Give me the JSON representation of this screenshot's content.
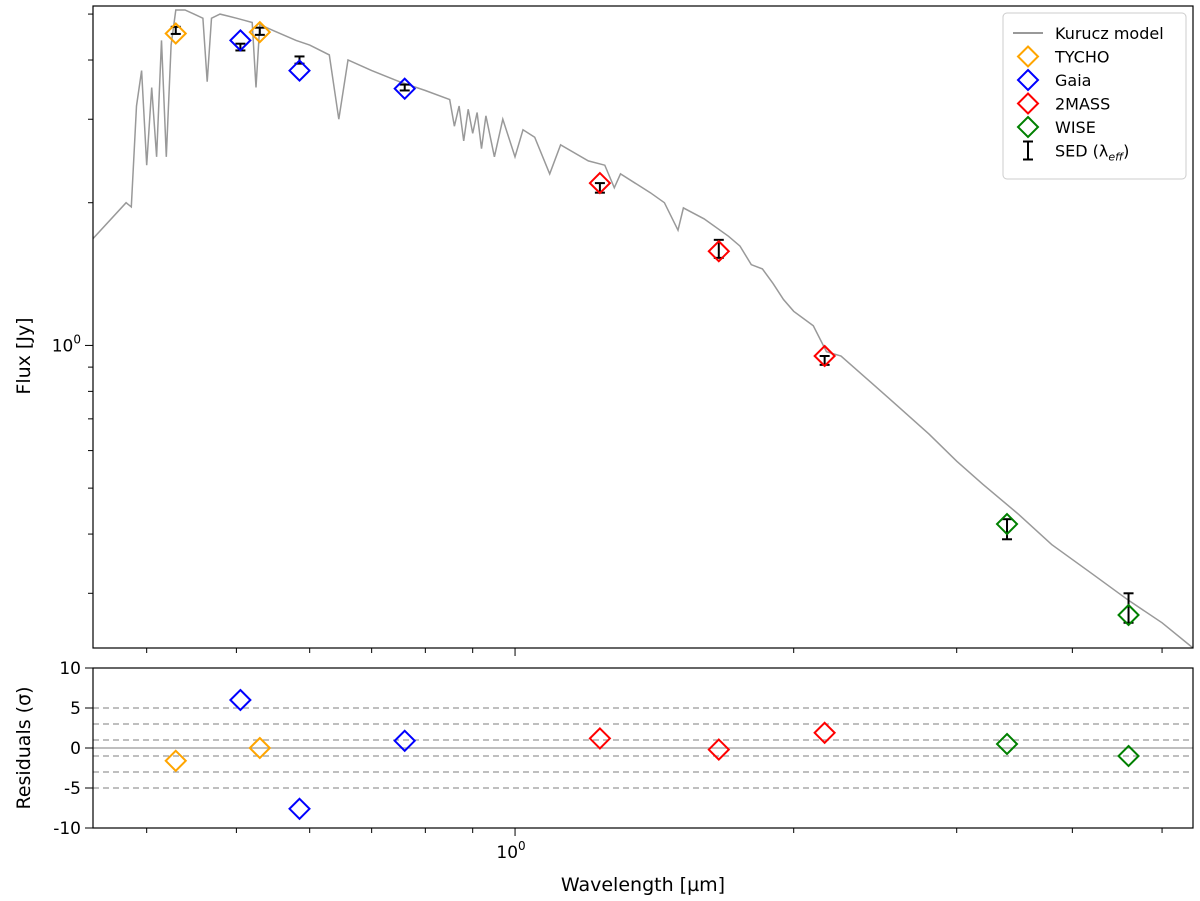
{
  "chart_data": [
    {
      "type": "line",
      "panel": "sed",
      "xscale": "log",
      "yscale": "log",
      "xlim": [
        0.35,
        5.4
      ],
      "ylim": [
        0.23,
        5.2
      ],
      "xlabel": "",
      "ylabel": "Flux [Jy]",
      "ytick_labels": [
        {
          "value": 1.0,
          "label": "10",
          "exp": "0"
        }
      ],
      "xtick_minor": [
        0.4,
        0.5,
        0.6,
        0.7,
        0.8,
        0.9,
        2,
        3,
        4,
        5
      ],
      "legend_position": "top-right",
      "model": {
        "name": "Kurucz model",
        "color": "#999999",
        "points": [
          [
            0.35,
            1.68
          ],
          [
            0.38,
            2.0
          ],
          [
            0.385,
            1.96
          ],
          [
            0.39,
            3.2
          ],
          [
            0.395,
            3.8
          ],
          [
            0.4,
            2.4
          ],
          [
            0.405,
            3.5
          ],
          [
            0.41,
            2.5
          ],
          [
            0.415,
            4.4
          ],
          [
            0.42,
            2.5
          ],
          [
            0.425,
            4.3
          ],
          [
            0.43,
            5.1
          ],
          [
            0.44,
            5.1
          ],
          [
            0.45,
            5.0
          ],
          [
            0.46,
            4.9
          ],
          [
            0.465,
            3.6
          ],
          [
            0.47,
            4.9
          ],
          [
            0.48,
            5.0
          ],
          [
            0.49,
            4.95
          ],
          [
            0.5,
            4.9
          ],
          [
            0.51,
            4.85
          ],
          [
            0.52,
            4.8
          ],
          [
            0.525,
            3.5
          ],
          [
            0.53,
            4.75
          ],
          [
            0.55,
            4.6
          ],
          [
            0.58,
            4.4
          ],
          [
            0.6,
            4.3
          ],
          [
            0.63,
            4.1
          ],
          [
            0.645,
            3.0
          ],
          [
            0.66,
            4.0
          ],
          [
            0.7,
            3.8
          ],
          [
            0.75,
            3.6
          ],
          [
            0.8,
            3.45
          ],
          [
            0.85,
            3.3
          ],
          [
            0.86,
            2.9
          ],
          [
            0.87,
            3.2
          ],
          [
            0.88,
            2.7
          ],
          [
            0.89,
            3.15
          ],
          [
            0.9,
            2.8
          ],
          [
            0.91,
            3.1
          ],
          [
            0.92,
            2.6
          ],
          [
            0.93,
            3.05
          ],
          [
            0.95,
            2.5
          ],
          [
            0.97,
            3.0
          ],
          [
            1.0,
            2.5
          ],
          [
            1.02,
            2.85
          ],
          [
            1.05,
            2.75
          ],
          [
            1.09,
            2.3
          ],
          [
            1.12,
            2.65
          ],
          [
            1.2,
            2.45
          ],
          [
            1.25,
            2.4
          ],
          [
            1.28,
            2.15
          ],
          [
            1.3,
            2.3
          ],
          [
            1.4,
            2.1
          ],
          [
            1.45,
            2.0
          ],
          [
            1.5,
            1.75
          ],
          [
            1.52,
            1.95
          ],
          [
            1.6,
            1.85
          ],
          [
            1.7,
            1.7
          ],
          [
            1.75,
            1.62
          ],
          [
            1.8,
            1.48
          ],
          [
            1.85,
            1.45
          ],
          [
            1.9,
            1.35
          ],
          [
            1.95,
            1.25
          ],
          [
            2.0,
            1.18
          ],
          [
            2.1,
            1.1
          ],
          [
            2.17,
            0.97
          ],
          [
            2.25,
            0.95
          ],
          [
            2.4,
            0.85
          ],
          [
            2.6,
            0.74
          ],
          [
            2.8,
            0.65
          ],
          [
            3.0,
            0.57
          ],
          [
            3.2,
            0.51
          ],
          [
            3.5,
            0.44
          ],
          [
            3.8,
            0.38
          ],
          [
            4.2,
            0.33
          ],
          [
            4.6,
            0.29
          ],
          [
            5.0,
            0.26
          ],
          [
            5.4,
            0.23
          ]
        ]
      },
      "series": [
        {
          "name": "TYCHO",
          "color": "#FFA500",
          "marker": "diamond",
          "x": [
            0.43,
            0.53
          ],
          "y": [
            4.55,
            4.58
          ]
        },
        {
          "name": "Gaia",
          "color": "#0000FF",
          "marker": "diamond",
          "x": [
            0.505,
            0.585,
            0.76
          ],
          "y": [
            4.4,
            3.8,
            3.48
          ]
        },
        {
          "name": "2MASS",
          "color": "#FF0000",
          "marker": "diamond",
          "x": [
            1.235,
            1.66,
            2.16
          ],
          "y": [
            2.2,
            1.58,
            0.95
          ]
        },
        {
          "name": "WISE",
          "color": "#008000",
          "marker": "diamond",
          "x": [
            3.4,
            4.6
          ],
          "y": [
            0.42,
            0.27
          ]
        }
      ],
      "sed_points": {
        "name": "SED (λ",
        "name_sub": "eff",
        "name_tail": ")",
        "color": "#000000",
        "x": [
          0.43,
          0.505,
          0.53,
          0.585,
          0.76,
          1.235,
          1.66,
          2.16,
          3.4,
          4.6
        ],
        "y": [
          4.62,
          4.26,
          4.6,
          4.0,
          3.5,
          2.15,
          1.6,
          0.93,
          0.41,
          0.28
        ],
        "err": [
          0.08,
          0.07,
          0.08,
          0.07,
          0.05,
          0.05,
          0.07,
          0.02,
          0.02,
          0.02
        ]
      }
    },
    {
      "type": "scatter",
      "panel": "residuals",
      "xscale": "log",
      "xlim": [
        0.35,
        5.4
      ],
      "ylim": [
        -10,
        10
      ],
      "xlabel": "Wavelength [µm]",
      "xtick_labels": [
        {
          "value": 1.0,
          "label": "10",
          "exp": "0"
        }
      ],
      "xtick_minor": [
        0.4,
        0.5,
        0.6,
        0.7,
        0.8,
        0.9,
        2,
        3,
        4,
        5
      ],
      "ylabel": "Residuals (σ)",
      "yticks": [
        10,
        5,
        0,
        -5,
        -10
      ],
      "reference_lines": {
        "solid": [
          0
        ],
        "dashed": [
          5,
          3,
          1,
          -1,
          -3,
          -5
        ]
      },
      "series": [
        {
          "name": "TYCHO",
          "color": "#FFA500",
          "x": [
            0.43,
            0.53
          ],
          "y": [
            -1.6,
            0
          ]
        },
        {
          "name": "Gaia",
          "color": "#0000FF",
          "x": [
            0.505,
            0.585,
            0.76
          ],
          "y": [
            6,
            -7.6,
            0.9
          ]
        },
        {
          "name": "2MASS",
          "color": "#FF0000",
          "x": [
            1.235,
            1.66,
            2.16
          ],
          "y": [
            1.2,
            -0.2,
            1.9
          ]
        },
        {
          "name": "WISE",
          "color": "#008000",
          "x": [
            3.4,
            4.6
          ],
          "y": [
            0.5,
            -1
          ]
        }
      ]
    }
  ]
}
